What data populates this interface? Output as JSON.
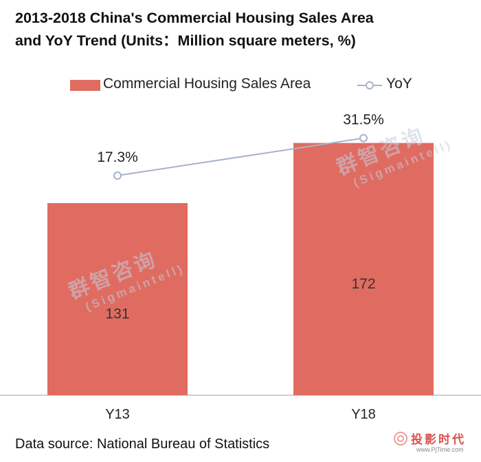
{
  "header": {
    "title_line1": "2013-2018 China's Commercial Housing Sales Area",
    "title_line2": "and YoY Trend (Units：Million square meters, %)"
  },
  "colors": {
    "bar": "#e06c61",
    "line": "#a7b2c9",
    "axis": "#bfbfbf"
  },
  "chart_data": {
    "type": "bar",
    "title": "2013-2018 China's Commercial Housing Sales Area and YoY Trend (Units：Million square meters, %)",
    "categories": [
      "Y13",
      "Y18"
    ],
    "series": [
      {
        "name": "Commercial Housing Sales Area",
        "type": "bar",
        "values": [
          131,
          172
        ],
        "labels": [
          "131",
          "172"
        ]
      },
      {
        "name": "YoY",
        "type": "line",
        "values": [
          17.3,
          31.5
        ],
        "labels": [
          "17.3%",
          "31.5%"
        ]
      }
    ],
    "ylim": [
      0,
      200
    ],
    "y2lim": [
      -40,
      40
    ],
    "xlabel": "",
    "ylabel": "",
    "legend_position": "top"
  },
  "watermarks": [
    {
      "cn": "群智咨询",
      "en": "(Sigmaintell)"
    },
    {
      "cn": "群智咨询",
      "en": "(Sigmaintell)"
    }
  ],
  "footer": {
    "source": "Data source: National Bureau of Statistics",
    "brand_name": "投影时代",
    "brand_url": "www.PjTime.com"
  }
}
